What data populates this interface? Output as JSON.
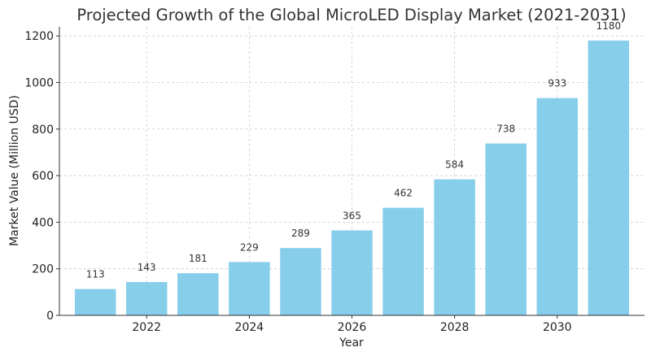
{
  "chart_data": {
    "type": "bar",
    "title": "Projected Growth of the Global MicroLED Display Market (2021-2031)",
    "xlabel": "Year",
    "ylabel": "Market Value (Million USD)",
    "categories": [
      2021,
      2022,
      2023,
      2024,
      2025,
      2026,
      2027,
      2028,
      2029,
      2030,
      2031
    ],
    "values": [
      113,
      143,
      181,
      229,
      289,
      365,
      462,
      584,
      738,
      933,
      1180
    ],
    "data_labels": [
      "113",
      "143",
      "181",
      "229",
      "289",
      "365",
      "462",
      "584",
      "738",
      "933",
      "1180"
    ],
    "x_ticks": [
      2022,
      2024,
      2026,
      2028,
      2030
    ],
    "x_tick_labels": [
      "2022",
      "2024",
      "2026",
      "2028",
      "2030"
    ],
    "y_ticks": [
      0,
      200,
      400,
      600,
      800,
      1000,
      1200
    ],
    "y_tick_labels": [
      "0",
      "200",
      "400",
      "600",
      "800",
      "1000",
      "1200"
    ],
    "xlim": [
      2020.3,
      2031.7
    ],
    "ylim": [
      0,
      1239
    ],
    "grid": true,
    "legend": false,
    "bar_color": "#87ceeb"
  }
}
